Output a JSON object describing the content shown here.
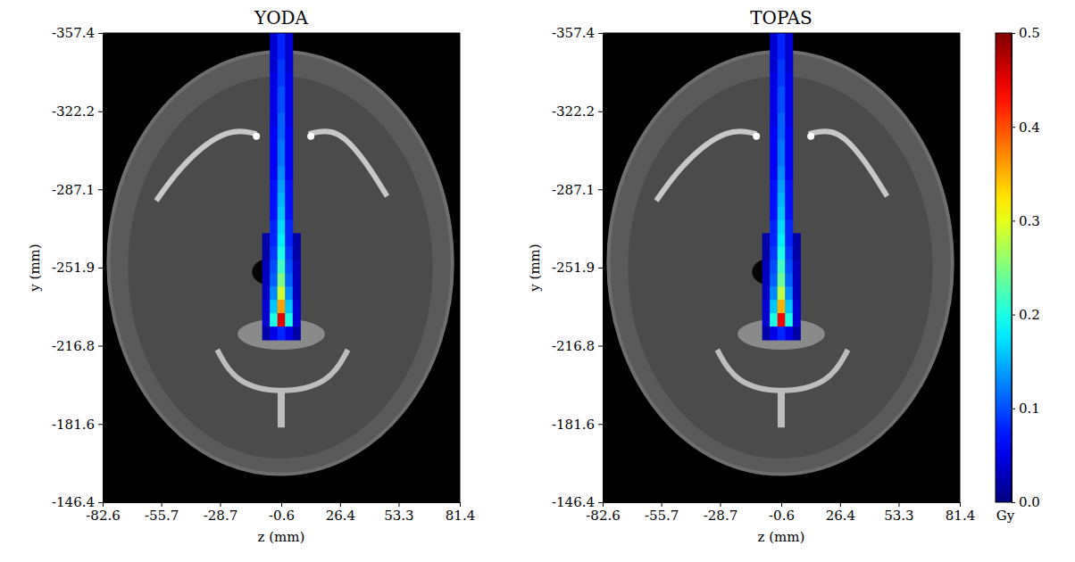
{
  "chart_data": [
    {
      "type": "heatmap",
      "title": "YODA",
      "x_label": "z (mm)",
      "y_label": "y (mm)",
      "xlim": [
        -82.6,
        81.4
      ],
      "ylim": [
        -357.4,
        -146.4
      ],
      "xticks": [
        -82.6,
        -55.7,
        -28.7,
        -0.6,
        26.4,
        53.3,
        81.4
      ],
      "yticks": [
        -357.4,
        -322.2,
        -287.1,
        -251.9,
        -216.8,
        -181.6,
        -146.4
      ],
      "x_edges": [
        -9.35,
        -5.85,
        -2.35,
        1.15,
        4.65,
        8.15
      ],
      "y_edges": [
        -357.4,
        -351.4,
        -345.4,
        -339.4,
        -333.4,
        -327.4,
        -321.4,
        -315.4,
        -309.4,
        -303.4,
        -297.4,
        -291.4,
        -285.4,
        -279.4,
        -273.4,
        -267.4,
        -261.4,
        -255.4,
        -249.4,
        -243.4,
        -237.4,
        -231.4,
        -225.4,
        -219.4
      ],
      "values": [
        [
          null,
          0.04,
          0.08,
          0.04,
          null
        ],
        [
          null,
          0.04,
          0.08,
          0.04,
          null
        ],
        [
          null,
          0.04,
          0.09,
          0.04,
          null
        ],
        [
          null,
          0.05,
          0.09,
          0.05,
          null
        ],
        [
          null,
          0.05,
          0.1,
          0.05,
          null
        ],
        [
          null,
          0.05,
          0.1,
          0.05,
          null
        ],
        [
          null,
          0.05,
          0.11,
          0.05,
          null
        ],
        [
          null,
          0.06,
          0.11,
          0.06,
          null
        ],
        [
          null,
          0.06,
          0.12,
          0.06,
          null
        ],
        [
          null,
          0.06,
          0.12,
          0.06,
          null
        ],
        [
          null,
          0.06,
          0.13,
          0.06,
          null
        ],
        [
          null,
          0.07,
          0.14,
          0.07,
          null
        ],
        [
          null,
          0.07,
          0.15,
          0.07,
          null
        ],
        [
          null,
          0.07,
          0.16,
          0.07,
          null
        ],
        [
          null,
          0.08,
          0.17,
          0.08,
          null
        ],
        [
          0.02,
          0.08,
          0.18,
          0.08,
          0.02
        ],
        [
          0.02,
          0.09,
          0.2,
          0.09,
          0.02
        ],
        [
          0.03,
          0.1,
          0.22,
          0.1,
          0.03
        ],
        [
          0.03,
          0.11,
          0.25,
          0.11,
          0.03
        ],
        [
          0.03,
          0.13,
          0.29,
          0.13,
          0.03
        ],
        [
          0.04,
          0.16,
          0.36,
          0.16,
          0.04
        ],
        [
          0.04,
          0.2,
          0.45,
          0.2,
          0.04
        ],
        [
          0.02,
          0.05,
          0.08,
          0.05,
          0.02
        ]
      ]
    },
    {
      "type": "heatmap",
      "title": "TOPAS",
      "x_label": "z (mm)",
      "y_label": "y (mm)",
      "xlim": [
        -82.6,
        81.4
      ],
      "ylim": [
        -357.4,
        -146.4
      ],
      "xticks": [
        -82.6,
        -55.7,
        -28.7,
        -0.6,
        26.4,
        53.3,
        81.4
      ],
      "yticks": [
        -357.4,
        -322.2,
        -287.1,
        -251.9,
        -216.8,
        -181.6,
        -146.4
      ],
      "x_edges": [
        -9.35,
        -5.85,
        -2.35,
        1.15,
        4.65,
        8.15
      ],
      "y_edges": [
        -357.4,
        -351.4,
        -345.4,
        -339.4,
        -333.4,
        -327.4,
        -321.4,
        -315.4,
        -309.4,
        -303.4,
        -297.4,
        -291.4,
        -285.4,
        -279.4,
        -273.4,
        -267.4,
        -261.4,
        -255.4,
        -249.4,
        -243.4,
        -237.4,
        -231.4,
        -225.4,
        -219.4
      ],
      "values": [
        [
          null,
          0.04,
          0.08,
          0.04,
          null
        ],
        [
          null,
          0.04,
          0.08,
          0.04,
          null
        ],
        [
          null,
          0.04,
          0.09,
          0.04,
          null
        ],
        [
          null,
          0.05,
          0.09,
          0.05,
          null
        ],
        [
          null,
          0.05,
          0.1,
          0.05,
          null
        ],
        [
          null,
          0.05,
          0.1,
          0.05,
          null
        ],
        [
          null,
          0.05,
          0.11,
          0.05,
          null
        ],
        [
          null,
          0.06,
          0.11,
          0.06,
          null
        ],
        [
          null,
          0.06,
          0.12,
          0.06,
          null
        ],
        [
          null,
          0.06,
          0.12,
          0.06,
          null
        ],
        [
          null,
          0.06,
          0.13,
          0.06,
          null
        ],
        [
          null,
          0.07,
          0.14,
          0.07,
          null
        ],
        [
          null,
          0.07,
          0.15,
          0.07,
          null
        ],
        [
          null,
          0.07,
          0.16,
          0.07,
          null
        ],
        [
          null,
          0.08,
          0.17,
          0.08,
          null
        ],
        [
          0.02,
          0.08,
          0.18,
          0.08,
          0.02
        ],
        [
          0.02,
          0.09,
          0.2,
          0.09,
          0.02
        ],
        [
          0.03,
          0.1,
          0.22,
          0.1,
          0.03
        ],
        [
          0.03,
          0.11,
          0.24,
          0.11,
          0.03
        ],
        [
          0.03,
          0.13,
          0.28,
          0.13,
          0.03
        ],
        [
          0.04,
          0.16,
          0.35,
          0.16,
          0.04
        ],
        [
          0.04,
          0.2,
          0.44,
          0.2,
          0.04
        ],
        [
          0.02,
          0.05,
          0.08,
          0.05,
          0.02
        ]
      ],
      "colorbar": {
        "range": [
          0,
          0.5
        ],
        "ticks": [
          {
            "value": 0,
            "label": "0.0"
          },
          0.1,
          0.2,
          0.3,
          0.4,
          0.5
        ],
        "label": "Gy"
      }
    }
  ]
}
